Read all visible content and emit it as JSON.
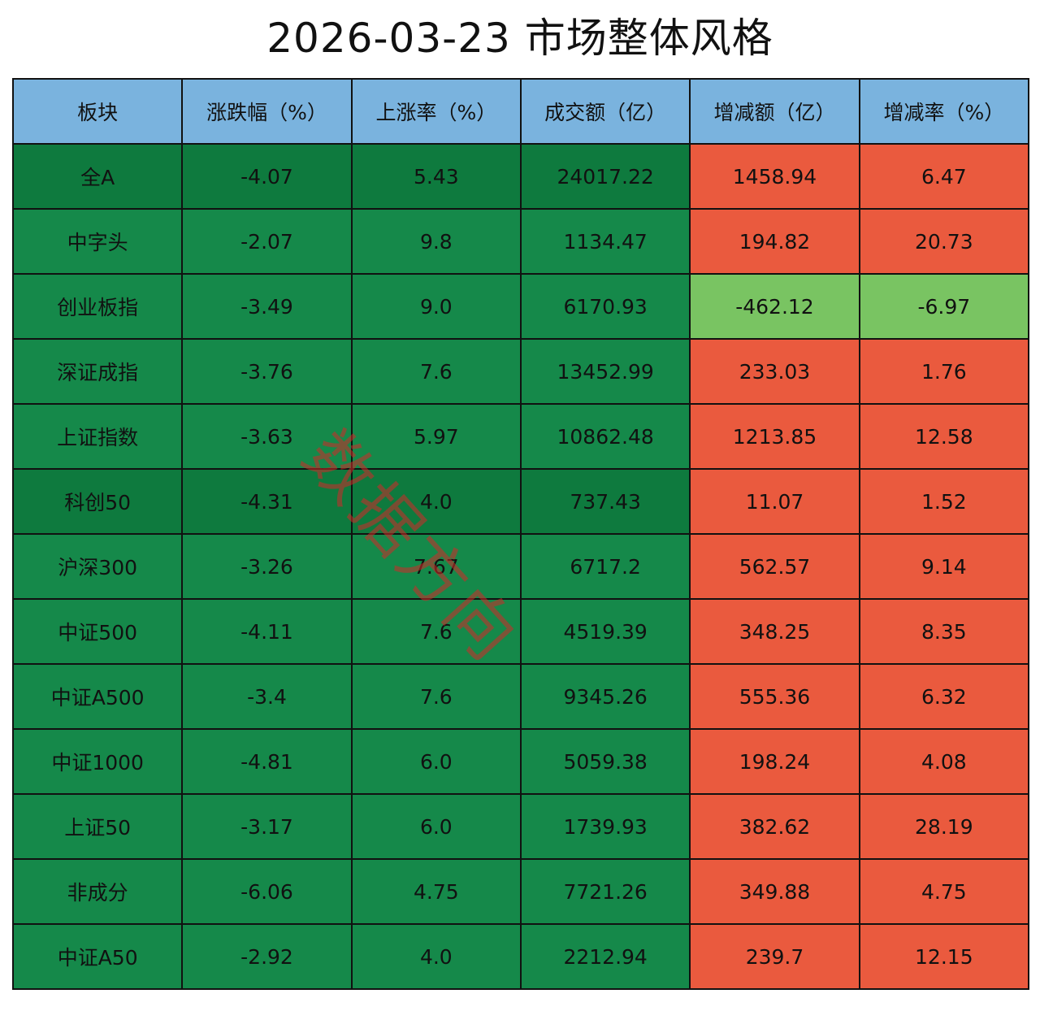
{
  "title": "2026-03-23 市场整体风格",
  "watermark": "数据方向",
  "colors": {
    "header": "#7ab3de",
    "green": "#15894a",
    "green_dark": "#0e7a3e",
    "red": "#ea5a3e",
    "light_green": "#79c462"
  },
  "chart_data": {
    "type": "table",
    "columns": [
      "板块",
      "涨跌幅（%）",
      "上涨率（%）",
      "成交额（亿）",
      "增减额（亿）",
      "增减率（%）"
    ],
    "rows": [
      [
        "全A",
        "-4.07",
        "5.43",
        "24017.22",
        "1458.94",
        "6.47"
      ],
      [
        "中字头",
        "-2.07",
        "9.8",
        "1134.47",
        "194.82",
        "20.73"
      ],
      [
        "创业板指",
        "-3.49",
        "9.0",
        "6170.93",
        "-462.12",
        "-6.97"
      ],
      [
        "深证成指",
        "-3.76",
        "7.6",
        "13452.99",
        "233.03",
        "1.76"
      ],
      [
        "上证指数",
        "-3.63",
        "5.97",
        "10862.48",
        "1213.85",
        "12.58"
      ],
      [
        "科创50",
        "-4.31",
        "4.0",
        "737.43",
        "11.07",
        "1.52"
      ],
      [
        "沪深300",
        "-3.26",
        "7.67",
        "6717.2",
        "562.57",
        "9.14"
      ],
      [
        "中证500",
        "-4.11",
        "7.6",
        "4519.39",
        "348.25",
        "8.35"
      ],
      [
        "中证A500",
        "-3.4",
        "7.6",
        "9345.26",
        "555.36",
        "6.32"
      ],
      [
        "中证1000",
        "-4.81",
        "6.0",
        "5059.38",
        "198.24",
        "4.08"
      ],
      [
        "上证50",
        "-3.17",
        "6.0",
        "1739.93",
        "382.62",
        "28.19"
      ],
      [
        "非成分",
        "-6.06",
        "4.75",
        "7721.26",
        "349.88",
        "4.75"
      ],
      [
        "中证A50",
        "-2.92",
        "4.0",
        "2212.94",
        "239.7",
        "12.15"
      ]
    ]
  }
}
